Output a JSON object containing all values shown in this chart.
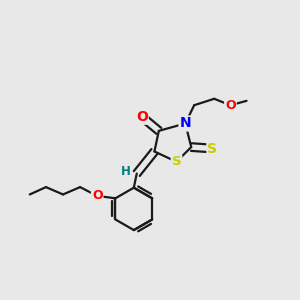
{
  "background_color": "#e8e8e8",
  "bond_color": "#1a1a1a",
  "atom_colors": {
    "O": "#ff0000",
    "N": "#0000ff",
    "S_thioxo": "#cccc00",
    "S_ring": "#cccc00",
    "H": "#008080"
  },
  "figsize": [
    3.0,
    3.0
  ],
  "dpi": 100
}
